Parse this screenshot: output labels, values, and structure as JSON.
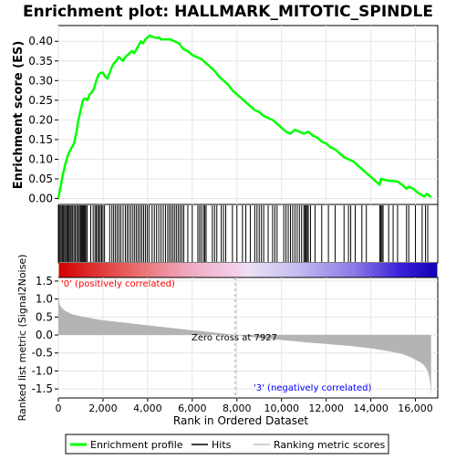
{
  "chart_data": {
    "type": "line",
    "title": "Enrichment plot: HALLMARK_MITOTIC_SPINDLE",
    "xlabel": "Rank in Ordered Dataset",
    "x_ticks": [
      0,
      2000,
      4000,
      6000,
      8000,
      10000,
      12000,
      14000,
      16000
    ],
    "x_tick_labels": [
      "0",
      "2,000",
      "4,000",
      "6,000",
      "8,000",
      "10,000",
      "12,000",
      "14,000",
      "16,000"
    ],
    "xlim": [
      0,
      17000
    ],
    "n_genes": 16700,
    "top_panel": {
      "ylabel": "Enrichment score (ES)",
      "ylim": [
        -0.015,
        0.44
      ],
      "y_ticks": [
        0.0,
        0.05,
        0.1,
        0.15,
        0.2,
        0.25,
        0.3,
        0.35,
        0.4
      ],
      "y_tick_labels": [
        "0.00",
        "0.05",
        "0.10",
        "0.15",
        "0.20",
        "0.25",
        "0.30",
        "0.35",
        "0.40"
      ],
      "series": [
        {
          "name": "Enrichment profile",
          "color": "#00ff00",
          "x": [
            0,
            100,
            200,
            300,
            400,
            500,
            600,
            700,
            800,
            900,
            1000,
            1100,
            1200,
            1300,
            1400,
            1500,
            1600,
            1700,
            1800,
            1900,
            2000,
            2100,
            2200,
            2300,
            2400,
            2500,
            2600,
            2700,
            2800,
            2900,
            3000,
            3100,
            3200,
            3300,
            3400,
            3500,
            3600,
            3700,
            3800,
            3900,
            4000,
            4100,
            4200,
            4300,
            4400,
            4500,
            4600,
            4800,
            5000,
            5200,
            5400,
            5600,
            5800,
            6000,
            6200,
            6400,
            6600,
            6800,
            7000,
            7200,
            7400,
            7600,
            7800,
            8000,
            8200,
            8400,
            8600,
            8800,
            9000,
            9200,
            9400,
            9600,
            9800,
            10000,
            10200,
            10400,
            10600,
            10800,
            11000,
            11200,
            11400,
            11600,
            11800,
            12000,
            12200,
            12400,
            12600,
            12800,
            13000,
            13200,
            13400,
            13600,
            13800,
            14000,
            14200,
            14400,
            14450,
            14600,
            14800,
            15000,
            15200,
            15400,
            15600,
            15700,
            15900,
            16100,
            16250,
            16400,
            16500,
            16600,
            16700
          ],
          "y": [
            0.0,
            0.03,
            0.06,
            0.085,
            0.105,
            0.12,
            0.13,
            0.14,
            0.165,
            0.2,
            0.225,
            0.25,
            0.255,
            0.25,
            0.265,
            0.27,
            0.28,
            0.3,
            0.315,
            0.32,
            0.32,
            0.31,
            0.305,
            0.32,
            0.335,
            0.345,
            0.35,
            0.36,
            0.355,
            0.35,
            0.36,
            0.365,
            0.37,
            0.375,
            0.37,
            0.38,
            0.39,
            0.4,
            0.395,
            0.405,
            0.41,
            0.415,
            0.412,
            0.41,
            0.408,
            0.41,
            0.405,
            0.405,
            0.405,
            0.4,
            0.395,
            0.38,
            0.375,
            0.365,
            0.36,
            0.355,
            0.345,
            0.335,
            0.325,
            0.31,
            0.3,
            0.29,
            0.275,
            0.265,
            0.255,
            0.245,
            0.235,
            0.225,
            0.22,
            0.21,
            0.205,
            0.2,
            0.19,
            0.18,
            0.17,
            0.165,
            0.175,
            0.17,
            0.165,
            0.17,
            0.16,
            0.155,
            0.145,
            0.14,
            0.13,
            0.125,
            0.115,
            0.105,
            0.1,
            0.095,
            0.085,
            0.075,
            0.065,
            0.055,
            0.045,
            0.035,
            0.05,
            0.048,
            0.045,
            0.045,
            0.043,
            0.035,
            0.025,
            0.03,
            0.025,
            0.015,
            0.01,
            0.005,
            0.012,
            0.008,
            0.004
          ]
        }
      ]
    },
    "hits": {
      "name": "Hits",
      "positions": [
        30,
        80,
        130,
        180,
        230,
        280,
        330,
        380,
        430,
        480,
        530,
        580,
        640,
        700,
        760,
        820,
        880,
        940,
        990,
        1030,
        1070,
        1110,
        1150,
        1190,
        1230,
        1290,
        1450,
        1560,
        1640,
        1700,
        1760,
        1820,
        1880,
        1940,
        2000,
        2070,
        2300,
        2400,
        2480,
        2560,
        2640,
        2720,
        2800,
        2900,
        3000,
        3080,
        3160,
        3250,
        3340,
        3420,
        3500,
        3580,
        3660,
        3740,
        3820,
        3900,
        3980,
        4060,
        4200,
        4300,
        4400,
        4500,
        4600,
        4700,
        4800,
        4900,
        4980,
        5060,
        5140,
        5220,
        5300,
        5380,
        5460,
        5540,
        5620,
        5800,
        6000,
        6250,
        6330,
        6410,
        6500,
        6560,
        6620,
        6900,
        7000,
        7100,
        7300,
        7400,
        7500,
        7800,
        8000,
        8250,
        8400,
        8600,
        8800,
        8900,
        9000,
        9100,
        9200,
        9400,
        9600,
        9700,
        9800,
        10100,
        10200,
        10300,
        10400,
        10500,
        10600,
        10700,
        10800,
        10900,
        11000,
        11050,
        11100,
        11150,
        11200,
        11300,
        11500,
        11800,
        12100,
        12400,
        12800,
        13000,
        13100,
        13300,
        13600,
        13800,
        14400,
        14450,
        14500,
        14550,
        14800,
        15000,
        15200,
        15600,
        15700,
        16000,
        16300,
        16450,
        16550
      ]
    },
    "ranking_metric": {
      "name": "Ranking metric scores",
      "ylabel": "Ranked list metric (Signal2Noise)",
      "ylim": [
        -1.75,
        1.6
      ],
      "y_ticks": [
        -1.5,
        -1.0,
        -0.5,
        0.0,
        0.5,
        1.0,
        1.5
      ],
      "y_tick_labels": [
        "-1.5",
        "-1.0",
        "-0.5",
        "0.0",
        "0.5",
        "1.0",
        "1.5"
      ],
      "x": [
        0,
        20,
        60,
        120,
        250,
        400,
        600,
        1000,
        1500,
        2000,
        3000,
        4000,
        5000,
        6000,
        7000,
        7927,
        9000,
        10000,
        11000,
        12000,
        13000,
        14000,
        14800,
        15400,
        15800,
        16200,
        16400,
        16550,
        16630,
        16680,
        16700
      ],
      "y": [
        1.45,
        1.0,
        0.85,
        0.78,
        0.7,
        0.64,
        0.58,
        0.52,
        0.46,
        0.41,
        0.34,
        0.27,
        0.2,
        0.13,
        0.07,
        0.0,
        -0.08,
        -0.14,
        -0.2,
        -0.25,
        -0.3,
        -0.37,
        -0.45,
        -0.53,
        -0.62,
        -0.75,
        -0.85,
        -1.0,
        -1.2,
        -1.5,
        -1.7
      ]
    },
    "zero_cross": 7927,
    "annotations": {
      "zero_cross_label": "Zero cross at 7927",
      "positive_label": "'0' (positively correlated)",
      "negative_label": "'3' (negatively correlated)"
    },
    "legend": {
      "placement": "bottom",
      "entries": [
        {
          "label": "Enrichment profile",
          "color": "#00ff00"
        },
        {
          "label": "Hits",
          "color": "#000000"
        },
        {
          "label": "Ranking metric scores",
          "color": "#c0c0c0"
        }
      ]
    },
    "colors": {
      "es_line": "#00ff00",
      "hit": "#000000",
      "metric_fill": "#b4b4b4",
      "positive_label": "#ff0000",
      "negative_label": "#0000ff",
      "grid": "#e6e6e6"
    }
  }
}
